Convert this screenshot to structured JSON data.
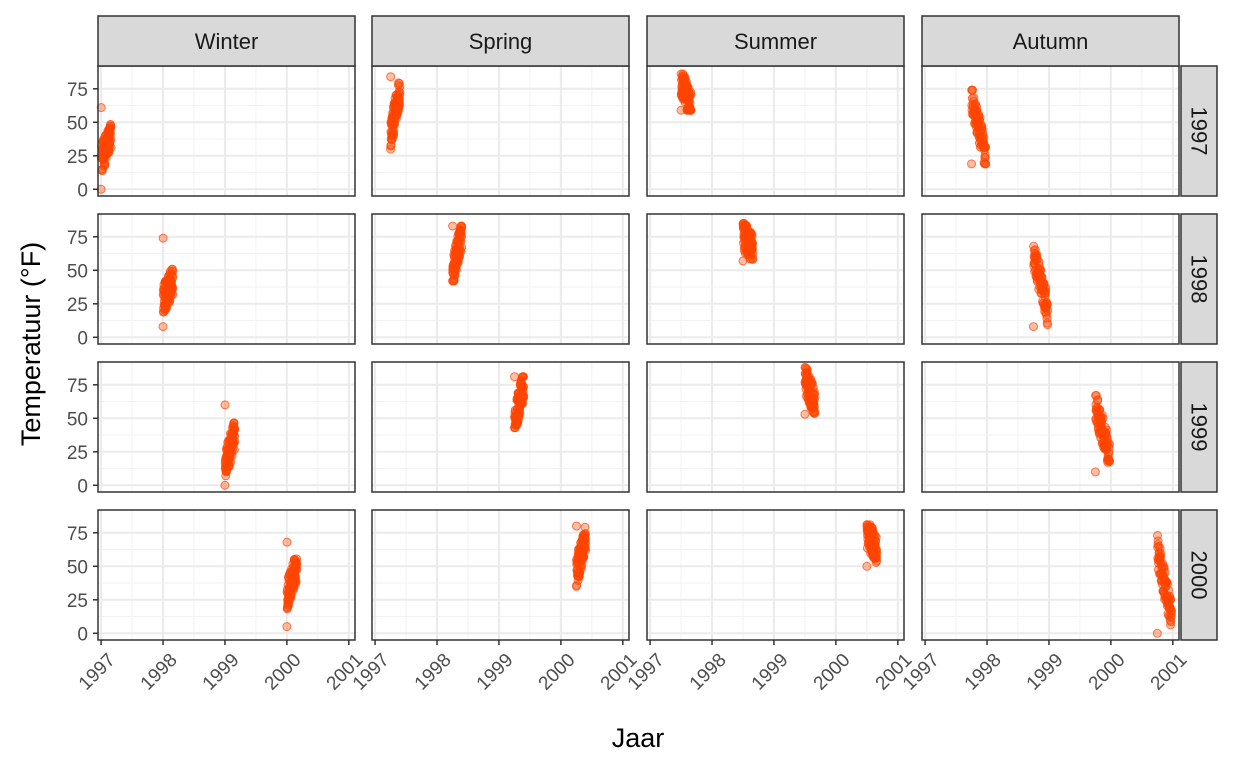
{
  "chart_data": {
    "type": "scatter",
    "title": "",
    "xlabel": "Jaar",
    "ylabel": "Temperatuur (°F)",
    "facet_cols": [
      "Winter",
      "Spring",
      "Summer",
      "Autumn"
    ],
    "facet_rows": [
      "1997",
      "1998",
      "1999",
      "2000"
    ],
    "xlim": [
      1996.95,
      2001.1
    ],
    "ylim": [
      -5,
      92
    ],
    "x_ticks": [
      1997,
      1998,
      1999,
      2000,
      2001
    ],
    "x_tick_labels": [
      "1997",
      "1998",
      "1999",
      "2000",
      "2001"
    ],
    "y_ticks": [
      0,
      25,
      50,
      75
    ],
    "y_tick_labels": [
      "0",
      "25",
      "50",
      "75"
    ],
    "grid": true,
    "point_color": "#FF4500",
    "point_alpha": 0.35,
    "panels": [
      {
        "row": "1997",
        "col": "Winter",
        "x_range": [
          1997.0,
          1997.16
        ],
        "y_range": [
          0,
          61
        ],
        "start": 22,
        "end": 40
      },
      {
        "row": "1997",
        "col": "Spring",
        "x_range": [
          1997.25,
          1997.4
        ],
        "y_range": [
          30,
          84
        ],
        "start": 40,
        "end": 75
      },
      {
        "row": "1997",
        "col": "Summer",
        "x_range": [
          1997.5,
          1997.66
        ],
        "y_range": [
          59,
          86
        ],
        "start": 80,
        "end": 62
      },
      {
        "row": "1997",
        "col": "Autumn",
        "x_range": [
          1997.75,
          1997.98
        ],
        "y_range": [
          19,
          74
        ],
        "start": 68,
        "end": 25
      },
      {
        "row": "1998",
        "col": "Winter",
        "x_range": [
          1998.0,
          1998.16
        ],
        "y_range": [
          8,
          74
        ],
        "start": 28,
        "end": 42
      },
      {
        "row": "1998",
        "col": "Spring",
        "x_range": [
          1998.25,
          1998.4
        ],
        "y_range": [
          42,
          83
        ],
        "start": 47,
        "end": 78
      },
      {
        "row": "1998",
        "col": "Summer",
        "x_range": [
          1998.5,
          1998.66
        ],
        "y_range": [
          57,
          85
        ],
        "start": 76,
        "end": 66
      },
      {
        "row": "1998",
        "col": "Autumn",
        "x_range": [
          1998.75,
          1998.98
        ],
        "y_range": [
          8,
          68
        ],
        "start": 62,
        "end": 20
      },
      {
        "row": "1999",
        "col": "Winter",
        "x_range": [
          1999.0,
          1999.16
        ],
        "y_range": [
          0,
          60
        ],
        "start": 15,
        "end": 38
      },
      {
        "row": "1999",
        "col": "Spring",
        "x_range": [
          1999.25,
          1999.4
        ],
        "y_range": [
          43,
          81
        ],
        "start": 48,
        "end": 75
      },
      {
        "row": "1999",
        "col": "Summer",
        "x_range": [
          1999.5,
          1999.66
        ],
        "y_range": [
          53,
          88
        ],
        "start": 80,
        "end": 62
      },
      {
        "row": "1999",
        "col": "Autumn",
        "x_range": [
          1999.75,
          1999.98
        ],
        "y_range": [
          10,
          67
        ],
        "start": 60,
        "end": 22
      },
      {
        "row": "2000",
        "col": "Winter",
        "x_range": [
          2000.0,
          2000.16
        ],
        "y_range": [
          5,
          68
        ],
        "start": 28,
        "end": 50
      },
      {
        "row": "2000",
        "col": "Spring",
        "x_range": [
          2000.25,
          2000.4
        ],
        "y_range": [
          35,
          80
        ],
        "start": 45,
        "end": 72
      },
      {
        "row": "2000",
        "col": "Summer",
        "x_range": [
          2000.5,
          2000.66
        ],
        "y_range": [
          50,
          81
        ],
        "start": 75,
        "end": 62
      },
      {
        "row": "2000",
        "col": "Autumn",
        "x_range": [
          2000.75,
          2000.98
        ],
        "y_range": [
          0,
          73
        ],
        "start": 62,
        "end": 12
      }
    ]
  }
}
